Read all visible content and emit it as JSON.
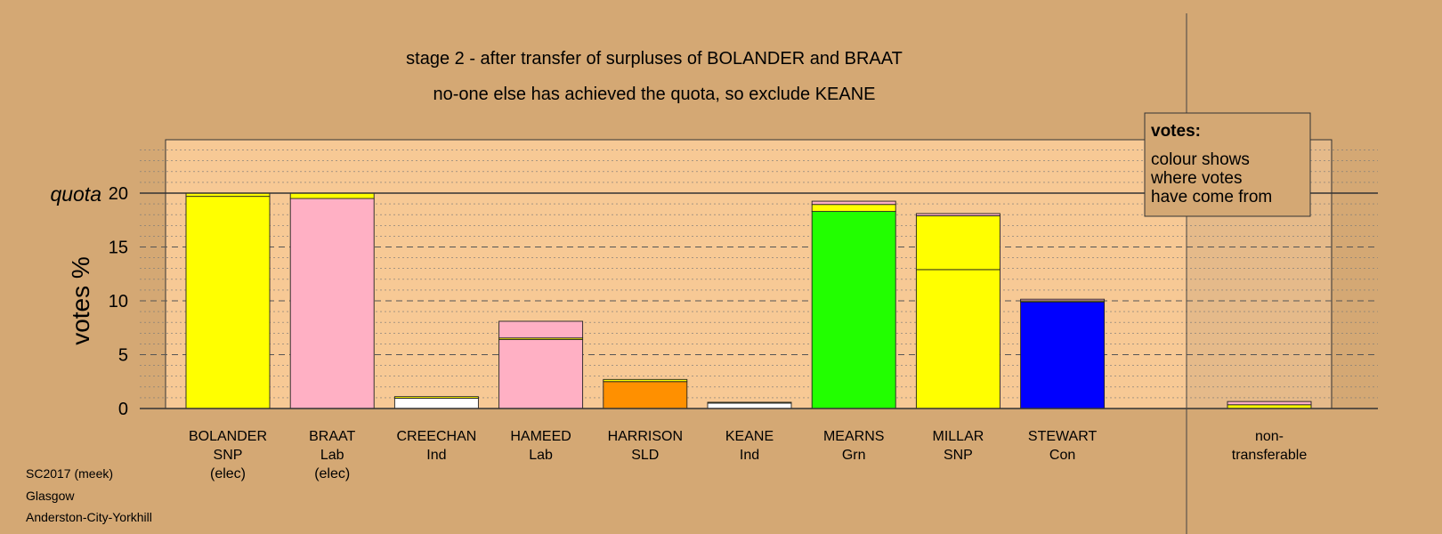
{
  "header": {
    "title": "stage 2 - after transfer of surpluses of BOLANDER and BRAAT",
    "subtitle": "no-one else has achieved the quota, so exclude KEANE"
  },
  "colors": {
    "background": "#d4a874",
    "plot_background": "#f7c995",
    "snp": "#ffff00",
    "lab": "#ffb0c4",
    "ind": "#ffffff",
    "sld": "#ff9000",
    "grn": "#22ff00",
    "con": "#0000ff"
  },
  "legend": {
    "title": "votes:",
    "lines": [
      "colour shows",
      "where votes",
      "have come from"
    ]
  },
  "footer": {
    "line1": "SC2017 (meek)",
    "line2": "Glasgow",
    "line3": "Anderston-City-Yorkhill"
  },
  "chart_data": {
    "type": "bar",
    "stacked": true,
    "title": "stage 2 - after transfer of surpluses of BOLANDER and BRAAT",
    "subtitle": "no-one else has achieved the quota, so exclude KEANE",
    "ylabel": "votes %",
    "ylim": [
      0,
      25
    ],
    "yticks": [
      0,
      5,
      10,
      15,
      20
    ],
    "quota": 20,
    "quota_label": "quota",
    "grid": true,
    "legend_position": "top-right",
    "candidates": [
      {
        "name": "BOLANDER",
        "party": "SNP",
        "status": "(elec)",
        "segments": [
          {
            "value": 19.7,
            "color": "snp"
          },
          {
            "value": 0.3,
            "color": "snp"
          }
        ]
      },
      {
        "name": "BRAAT",
        "party": "Lab",
        "status": "(elec)",
        "segments": [
          {
            "value": 19.5,
            "color": "lab"
          },
          {
            "value": 0.5,
            "color": "snp"
          }
        ]
      },
      {
        "name": "CREECHAN",
        "party": "Ind",
        "status": "",
        "segments": [
          {
            "value": 0.95,
            "color": "ind"
          },
          {
            "value": 0.15,
            "color": "snp"
          }
        ]
      },
      {
        "name": "HAMEED",
        "party": "Lab",
        "status": "",
        "segments": [
          {
            "value": 6.4,
            "color": "lab"
          },
          {
            "value": 0.15,
            "color": "snp"
          },
          {
            "value": 1.55,
            "color": "lab"
          }
        ]
      },
      {
        "name": "HARRISON",
        "party": "SLD",
        "status": "",
        "segments": [
          {
            "value": 2.5,
            "color": "sld"
          },
          {
            "value": 0.2,
            "color": "snp"
          }
        ]
      },
      {
        "name": "KEANE",
        "party": "Ind",
        "status": "",
        "segments": [
          {
            "value": 0.5,
            "color": "ind"
          },
          {
            "value": 0.08,
            "color": "snp"
          }
        ]
      },
      {
        "name": "MEARNS",
        "party": "Grn",
        "status": "",
        "segments": [
          {
            "value": 18.3,
            "color": "grn"
          },
          {
            "value": 0.65,
            "color": "snp"
          },
          {
            "value": 0.3,
            "color": "lab"
          }
        ]
      },
      {
        "name": "MILLAR",
        "party": "SNP",
        "status": "",
        "segments": [
          {
            "value": 12.9,
            "color": "snp"
          },
          {
            "value": 5.0,
            "color": "snp"
          },
          {
            "value": 0.2,
            "color": "lab"
          }
        ]
      },
      {
        "name": "STEWART",
        "party": "Con",
        "status": "",
        "segments": [
          {
            "value": 9.9,
            "color": "con"
          },
          {
            "value": 0.1,
            "color": "snp"
          },
          {
            "value": 0.15,
            "color": "lab"
          }
        ]
      }
    ],
    "nontransferable": {
      "label_line1": "non-",
      "label_line2": "transferable",
      "segments": [
        {
          "value": 0.35,
          "color": "snp"
        },
        {
          "value": 0.3,
          "color": "lab"
        }
      ]
    }
  }
}
